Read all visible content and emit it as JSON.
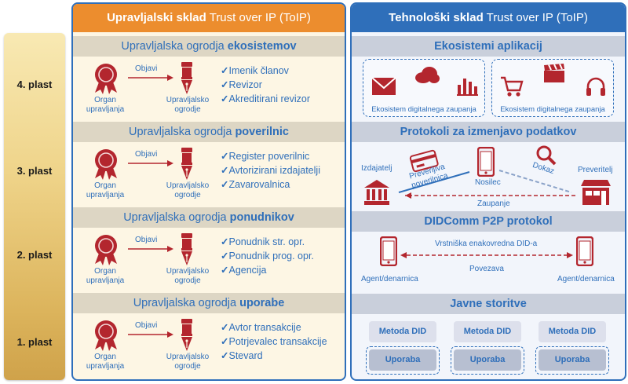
{
  "layers": [
    "4. plast",
    "3. plast",
    "2. plast",
    "1. plast"
  ],
  "left_panel": {
    "title_bold": "Upravljalski sklad",
    "title_rest": " Trust over IP (ToIP)",
    "sections": [
      {
        "title_prefix": "Upravljalska ogrodja ",
        "title_bold": "ekosistemov",
        "items": [
          "Imenik članov",
          "Revizor",
          "Akreditirani revizor"
        ]
      },
      {
        "title_prefix": "Upravljalska ogrodja ",
        "title_bold": "poverilnic",
        "items": [
          "Register poverilnic",
          "Avtorizirani izdajatelji",
          "Zavarovalnica"
        ]
      },
      {
        "title_prefix": "Upravljalska ogrodja ",
        "title_bold": "ponudnikov",
        "items": [
          "Ponudnik str. opr.",
          "Ponudnik prog. opr.",
          "Agencija"
        ]
      },
      {
        "title_prefix": "Upravljalska ogrodja ",
        "title_bold": "uporabe",
        "items": [
          "Avtor transakcije",
          "Potrjevalec transakcije",
          "Stevard"
        ]
      }
    ],
    "organ_label_1": "Organ",
    "organ_label_2": "upravljanja",
    "publish_label": "Objavi",
    "framework_label_1": "Upravljalsko",
    "framework_label_2": "ogrodje"
  },
  "right_panel": {
    "title_bold": "Tehnološki sklad",
    "title_rest": " Trust over IP (ToIP)",
    "eco_title": "Ekosistemi aplikacij",
    "eco_caption": "Ekosistem digitalnega zaupanja",
    "protocols_title": "Protokoli za izmenjavo podatkov",
    "issuer": "Izdajatelj",
    "holder": "Nosilec",
    "verifier": "Preveritelj",
    "verifiable_credential_1": "Preverljiva",
    "verifiable_credential_2": "poverilnica",
    "proof": "Dokaz",
    "trust": "Zaupanje",
    "didcomm_title": "DIDComm P2P protokol",
    "peer_did": "Vrstniška enakovredna DID-a",
    "connection": "Povezava",
    "agent_left": "Agent/denarnica",
    "agent_right": "Agent/denarnica",
    "services_title": "Javne storitve",
    "services": [
      {
        "top": "Metoda DID",
        "bottom": "Uporaba"
      },
      {
        "top": "Metoda DID",
        "bottom": "Uporaba"
      },
      {
        "top": "Metoda DID",
        "bottom": "Uporaba"
      }
    ]
  },
  "colors": {
    "blue": "#2f6fba",
    "orange": "#ec8d2e",
    "red": "#b3262e"
  }
}
